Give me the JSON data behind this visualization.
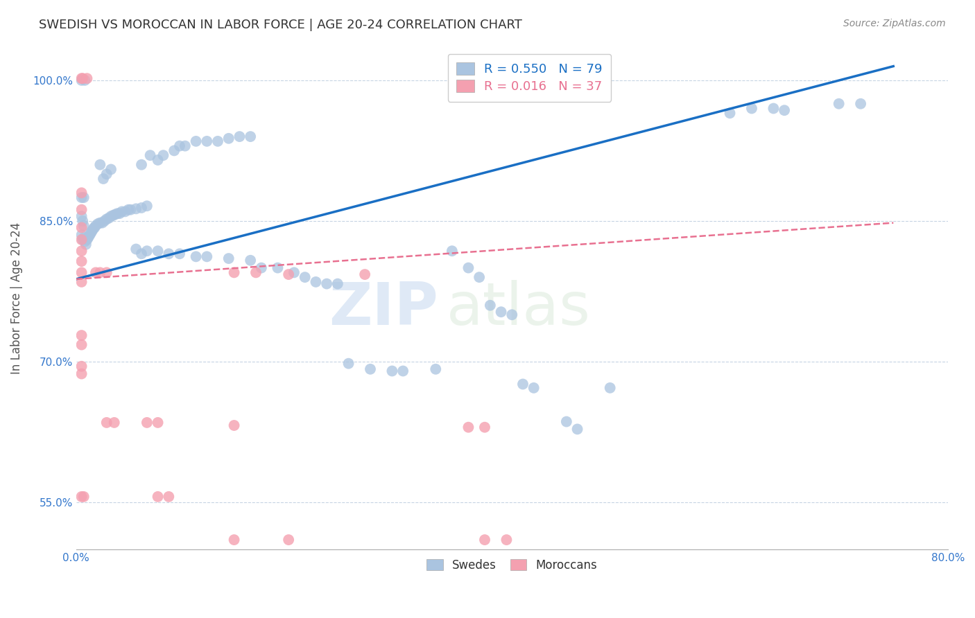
{
  "title": "SWEDISH VS MOROCCAN IN LABOR FORCE | AGE 20-24 CORRELATION CHART",
  "source": "Source: ZipAtlas.com",
  "ylabel": "In Labor Force | Age 20-24",
  "xlim": [
    0.0,
    0.8
  ],
  "ylim": [
    0.5,
    1.035
  ],
  "xticks": [
    0.0,
    0.1,
    0.2,
    0.3,
    0.4,
    0.5,
    0.6,
    0.7,
    0.8
  ],
  "xticklabels": [
    "0.0%",
    "",
    "",
    "",
    "",
    "",
    "",
    "",
    "80.0%"
  ],
  "yticks": [
    0.55,
    0.7,
    0.85,
    1.0
  ],
  "yticklabels": [
    "55.0%",
    "70.0%",
    "85.0%",
    "100.0%"
  ],
  "legend_R_swedish": "0.550",
  "legend_N_swedish": "79",
  "legend_R_moroccan": "0.016",
  "legend_N_moroccan": "37",
  "swedish_color": "#aac4e0",
  "moroccan_color": "#f4a0b0",
  "swedish_line_color": "#1a6fc4",
  "moroccan_line_color": "#e87090",
  "watermark_zip": "ZIP",
  "watermark_atlas": "atlas",
  "swedish_line": [
    0.0,
    0.788,
    0.75,
    1.015
  ],
  "moroccan_line": [
    0.0,
    0.788,
    0.75,
    0.848
  ],
  "swedish_dots": [
    [
      0.005,
      1.0
    ],
    [
      0.008,
      1.0
    ],
    [
      0.005,
      0.875
    ],
    [
      0.007,
      0.875
    ],
    [
      0.005,
      0.855
    ],
    [
      0.006,
      0.85
    ],
    [
      0.007,
      0.845
    ],
    [
      0.005,
      0.835
    ],
    [
      0.006,
      0.83
    ],
    [
      0.007,
      0.832
    ],
    [
      0.008,
      0.828
    ],
    [
      0.009,
      0.825
    ],
    [
      0.01,
      0.83
    ],
    [
      0.011,
      0.832
    ],
    [
      0.012,
      0.834
    ],
    [
      0.013,
      0.836
    ],
    [
      0.014,
      0.838
    ],
    [
      0.015,
      0.84
    ],
    [
      0.016,
      0.842
    ],
    [
      0.017,
      0.843
    ],
    [
      0.018,
      0.845
    ],
    [
      0.02,
      0.847
    ],
    [
      0.022,
      0.848
    ],
    [
      0.024,
      0.848
    ],
    [
      0.026,
      0.85
    ],
    [
      0.028,
      0.852
    ],
    [
      0.03,
      0.853
    ],
    [
      0.032,
      0.855
    ],
    [
      0.034,
      0.856
    ],
    [
      0.036,
      0.857
    ],
    [
      0.038,
      0.858
    ],
    [
      0.04,
      0.858
    ],
    [
      0.042,
      0.86
    ],
    [
      0.045,
      0.86
    ],
    [
      0.048,
      0.862
    ],
    [
      0.05,
      0.862
    ],
    [
      0.055,
      0.863
    ],
    [
      0.06,
      0.864
    ],
    [
      0.065,
      0.866
    ],
    [
      0.022,
      0.91
    ],
    [
      0.025,
      0.895
    ],
    [
      0.028,
      0.9
    ],
    [
      0.032,
      0.905
    ],
    [
      0.06,
      0.91
    ],
    [
      0.068,
      0.92
    ],
    [
      0.075,
      0.915
    ],
    [
      0.08,
      0.92
    ],
    [
      0.09,
      0.925
    ],
    [
      0.095,
      0.93
    ],
    [
      0.1,
      0.93
    ],
    [
      0.11,
      0.935
    ],
    [
      0.12,
      0.935
    ],
    [
      0.13,
      0.935
    ],
    [
      0.14,
      0.938
    ],
    [
      0.15,
      0.94
    ],
    [
      0.16,
      0.94
    ],
    [
      0.055,
      0.82
    ],
    [
      0.06,
      0.815
    ],
    [
      0.065,
      0.818
    ],
    [
      0.075,
      0.818
    ],
    [
      0.085,
      0.815
    ],
    [
      0.095,
      0.815
    ],
    [
      0.11,
      0.812
    ],
    [
      0.12,
      0.812
    ],
    [
      0.14,
      0.81
    ],
    [
      0.16,
      0.808
    ],
    [
      0.17,
      0.8
    ],
    [
      0.185,
      0.8
    ],
    [
      0.2,
      0.795
    ],
    [
      0.21,
      0.79
    ],
    [
      0.22,
      0.785
    ],
    [
      0.23,
      0.783
    ],
    [
      0.24,
      0.783
    ],
    [
      0.25,
      0.698
    ],
    [
      0.27,
      0.692
    ],
    [
      0.29,
      0.69
    ],
    [
      0.3,
      0.69
    ],
    [
      0.33,
      0.692
    ],
    [
      0.345,
      0.818
    ],
    [
      0.36,
      0.8
    ],
    [
      0.37,
      0.79
    ],
    [
      0.38,
      0.76
    ],
    [
      0.39,
      0.753
    ],
    [
      0.4,
      0.75
    ],
    [
      0.41,
      0.676
    ],
    [
      0.42,
      0.672
    ],
    [
      0.45,
      0.636
    ],
    [
      0.46,
      0.628
    ],
    [
      0.49,
      0.672
    ],
    [
      0.6,
      0.965
    ],
    [
      0.62,
      0.97
    ],
    [
      0.64,
      0.97
    ],
    [
      0.65,
      0.968
    ],
    [
      0.7,
      0.975
    ],
    [
      0.72,
      0.975
    ]
  ],
  "moroccan_dots": [
    [
      0.005,
      1.002
    ],
    [
      0.006,
      1.002
    ],
    [
      0.01,
      1.002
    ],
    [
      0.005,
      0.88
    ],
    [
      0.005,
      0.862
    ],
    [
      0.005,
      0.843
    ],
    [
      0.005,
      0.83
    ],
    [
      0.005,
      0.818
    ],
    [
      0.005,
      0.807
    ],
    [
      0.005,
      0.795
    ],
    [
      0.005,
      0.785
    ],
    [
      0.005,
      0.728
    ],
    [
      0.005,
      0.718
    ],
    [
      0.005,
      0.695
    ],
    [
      0.005,
      0.687
    ],
    [
      0.005,
      0.556
    ],
    [
      0.007,
      0.556
    ],
    [
      0.018,
      0.795
    ],
    [
      0.022,
      0.795
    ],
    [
      0.028,
      0.795
    ],
    [
      0.028,
      0.635
    ],
    [
      0.035,
      0.635
    ],
    [
      0.065,
      0.635
    ],
    [
      0.075,
      0.635
    ],
    [
      0.075,
      0.556
    ],
    [
      0.085,
      0.556
    ],
    [
      0.145,
      0.795
    ],
    [
      0.165,
      0.795
    ],
    [
      0.195,
      0.793
    ],
    [
      0.265,
      0.793
    ],
    [
      0.145,
      0.632
    ],
    [
      0.36,
      0.63
    ],
    [
      0.375,
      0.63
    ],
    [
      0.145,
      0.51
    ],
    [
      0.195,
      0.51
    ],
    [
      0.375,
      0.51
    ],
    [
      0.395,
      0.51
    ]
  ]
}
